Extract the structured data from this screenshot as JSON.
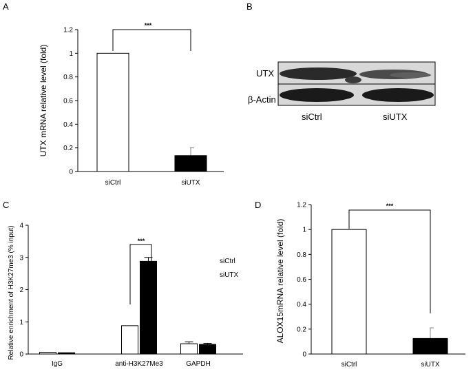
{
  "panels": {
    "A": {
      "letter": "A"
    },
    "B": {
      "letter": "B"
    },
    "C": {
      "letter": "C"
    },
    "D": {
      "letter": "D"
    }
  },
  "colors": {
    "ctrl_fill": "#ffffff",
    "treat_fill": "#000000",
    "axis": "#000000"
  },
  "chart_data": [
    {
      "id": "A",
      "type": "bar",
      "categories": [
        "siCtrl",
        "siUTX"
      ],
      "values": [
        1.0,
        0.135
      ],
      "errors": [
        0,
        0.065
      ],
      "fills": [
        "#ffffff",
        "#000000"
      ],
      "ylabel": "UTX mRNA relative level (fold)",
      "ylim": [
        0,
        1.2
      ],
      "yticks": [
        "0",
        "0.2",
        "0.4",
        "0.6",
        "0.8",
        "1",
        "1.2"
      ],
      "significance": "***"
    },
    {
      "id": "C",
      "type": "bar",
      "categories": [
        "IgG",
        "anti-H3K27Me3",
        "GAPDH"
      ],
      "series": [
        {
          "name": "siCtrl",
          "values": [
            0.05,
            0.88,
            0.32
          ],
          "errors": [
            0,
            0,
            0.06
          ],
          "fill": "#ffffff"
        },
        {
          "name": "siUTX",
          "values": [
            0.04,
            2.88,
            0.3
          ],
          "errors": [
            0,
            0.12,
            0.03
          ],
          "fill": "#000000"
        }
      ],
      "ylabel": "Relative enrichment of H3K27me3 (% input)",
      "ylim": [
        0,
        4
      ],
      "yticks": [
        "0",
        "1",
        "2",
        "3",
        "4"
      ],
      "legend": [
        "siCtrl",
        "siUTX"
      ],
      "significance": "***"
    },
    {
      "id": "D",
      "type": "bar",
      "categories": [
        "siCtrl",
        "siUTX"
      ],
      "values": [
        1.0,
        0.125
      ],
      "errors": [
        0,
        0.085
      ],
      "fills": [
        "#ffffff",
        "#000000"
      ],
      "ylabel": "ALOX15mRNA relative level (fold)",
      "ylim": [
        0,
        1.2
      ],
      "yticks": [
        "0",
        "0.2",
        "0.4",
        "0.6",
        "0.8",
        "1",
        "1.2"
      ],
      "significance": "***"
    }
  ],
  "blot": {
    "rows": [
      "UTX",
      "β-Actin"
    ],
    "lanes": [
      "siCtrl",
      "siUTX"
    ]
  }
}
